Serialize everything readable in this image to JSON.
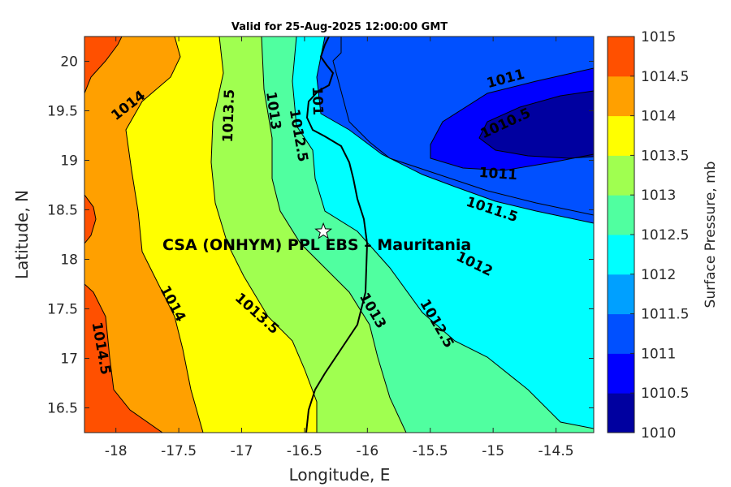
{
  "chart_data": {
    "type": "heatmap",
    "title": "Valid for 25-Aug-2025 12:00:00 GMT",
    "xlabel": "Longitude, E",
    "ylabel": "Latitude, N",
    "xlim": [
      -18.25,
      -14.2
    ],
    "ylim": [
      16.25,
      20.25
    ],
    "xticks": [
      -18,
      -17.5,
      -17,
      -16.5,
      -16,
      -15.5,
      -15,
      -14.5
    ],
    "yticks": [
      16.5,
      17,
      17.5,
      18,
      18.5,
      19,
      19.5,
      20
    ],
    "colorbar": {
      "label": "Surface Pressure, mb",
      "levels": [
        1010,
        1010.5,
        1011,
        1011.5,
        1012,
        1012.5,
        1013,
        1013.5,
        1014,
        1014.5,
        1015
      ],
      "colors": [
        "#0000a0",
        "#0000ff",
        "#0050ff",
        "#00a0ff",
        "#00ffff",
        "#50ffa0",
        "#a0ff50",
        "#ffff00",
        "#ffa000",
        "#ff5000",
        "#ff0000"
      ]
    },
    "contour_labels": [
      {
        "text": "1014",
        "lon": -17.9,
        "lat": 19.55,
        "angle": -38
      },
      {
        "text": "1013.5",
        "lon": -17.1,
        "lat": 19.45,
        "angle": -88
      },
      {
        "text": "1013",
        "lon": -16.75,
        "lat": 19.5,
        "angle": 82
      },
      {
        "text": "1012.5",
        "lon": -16.55,
        "lat": 19.25,
        "angle": 80
      },
      {
        "text": "101",
        "lon": -16.4,
        "lat": 19.6,
        "angle": 88
      },
      {
        "text": "1011",
        "lon": -14.9,
        "lat": 19.82,
        "angle": -15
      },
      {
        "text": "1010.5",
        "lon": -14.9,
        "lat": 19.37,
        "angle": -25
      },
      {
        "text": "1011",
        "lon": -14.96,
        "lat": 18.86,
        "angle": 4
      },
      {
        "text": "1011.5",
        "lon": -15.01,
        "lat": 18.5,
        "angle": 18
      },
      {
        "text": "1012",
        "lon": -15.15,
        "lat": 17.95,
        "angle": 26
      },
      {
        "text": "1012.5",
        "lon": -15.45,
        "lat": 17.35,
        "angle": 60
      },
      {
        "text": "1013",
        "lon": -15.96,
        "lat": 17.48,
        "angle": 60
      },
      {
        "text": "1013.5",
        "lon": -16.88,
        "lat": 17.45,
        "angle": 42
      },
      {
        "text": "1014",
        "lon": -17.55,
        "lat": 17.55,
        "angle": 62
      },
      {
        "text": "1014.5",
        "lon": -18.12,
        "lat": 17.1,
        "angle": 80
      }
    ],
    "site": {
      "name": "CSA (ONHYM) PPL EBS  – Mauritania",
      "lon": -16.35,
      "lat": 18.28,
      "marker": "white-star"
    }
  }
}
